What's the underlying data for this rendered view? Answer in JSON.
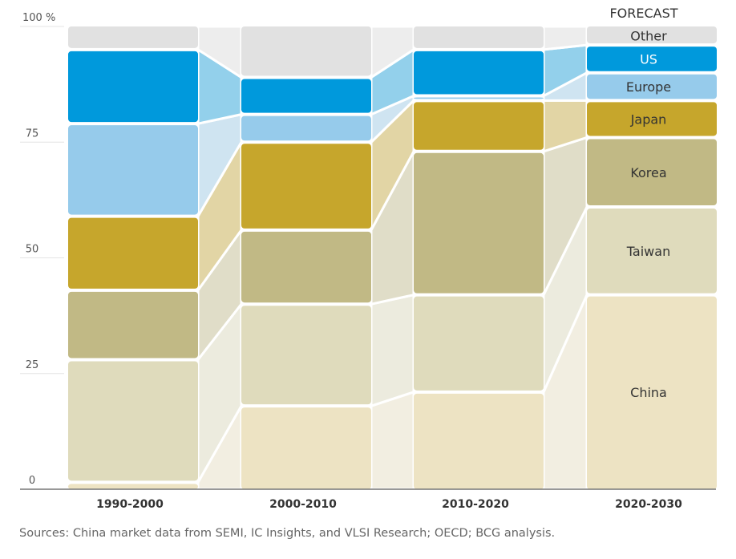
{
  "chart_data": {
    "type": "bar",
    "stacked": true,
    "categories": [
      "1990-2000",
      "2000-2010",
      "2010-2020",
      "2020-2030"
    ],
    "forecast_label": "FORECAST",
    "series": [
      {
        "name": "China",
        "color": "#ede3c3",
        "values": [
          1.5,
          18,
          21,
          42
        ]
      },
      {
        "name": "Taiwan",
        "color": "#dfdbbc",
        "values": [
          26.5,
          22,
          21,
          19
        ]
      },
      {
        "name": "Korea",
        "color": "#c1b985",
        "values": [
          15,
          16,
          31,
          15
        ]
      },
      {
        "name": "Japan",
        "color": "#c6a62c",
        "values": [
          16,
          19,
          11,
          8
        ]
      },
      {
        "name": "Europe",
        "color": "#96cbeb",
        "values": [
          20,
          6,
          1,
          6
        ]
      },
      {
        "name": "US",
        "color": "#0099dc",
        "values": [
          16,
          8,
          10,
          6
        ]
      },
      {
        "name": "Other",
        "color": "#e1e1e1",
        "values": [
          5,
          11,
          5,
          4
        ]
      }
    ],
    "yticks": [
      "0",
      "25",
      "50",
      "75",
      "100 %"
    ],
    "ytick_values": [
      0,
      25,
      50,
      75,
      100
    ],
    "ylim": [
      0,
      100
    ],
    "grid": false,
    "legend": "labels inside last bar"
  },
  "source": "Sources: China market data from SEMI, IC Insights, and VLSI Research; OECD; BCG analysis."
}
